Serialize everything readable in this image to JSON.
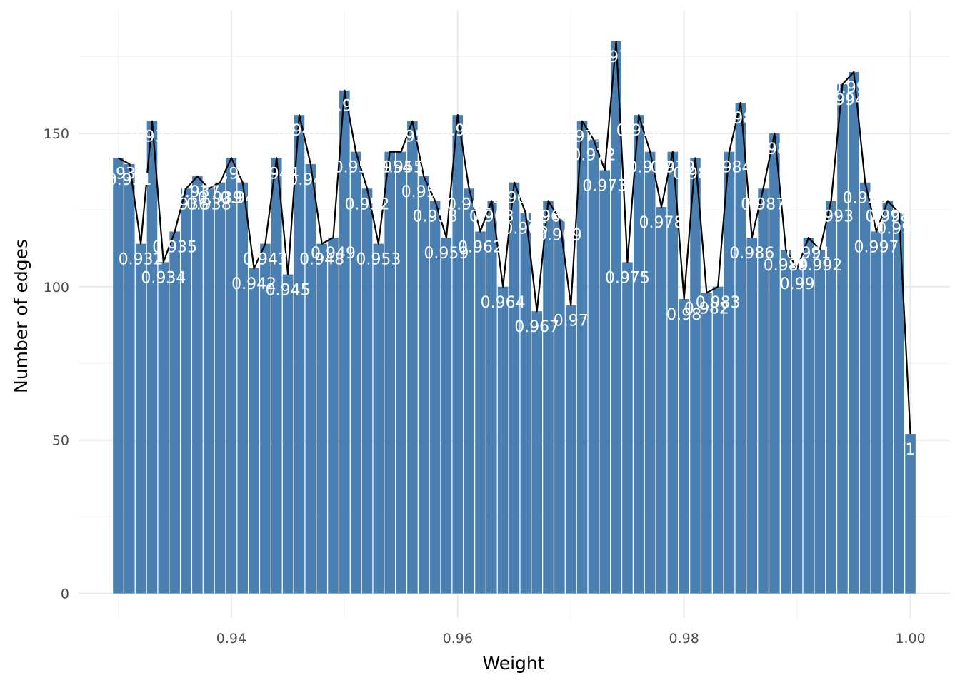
{
  "chart_data": {
    "type": "bar",
    "xlabel": "Weight",
    "ylabel": "Number of edges",
    "xlim": [
      0.9265,
      1.0035
    ],
    "ylim": [
      -8,
      190
    ],
    "grid": true,
    "legend": "none",
    "x_ticks": [
      {
        "value": 0.94,
        "label": "0.94"
      },
      {
        "value": 0.96,
        "label": "0.96"
      },
      {
        "value": 0.98,
        "label": "0.98"
      },
      {
        "value": 1.0,
        "label": "1.00"
      }
    ],
    "y_ticks": [
      {
        "value": 0,
        "label": "0"
      },
      {
        "value": 50,
        "label": "50"
      },
      {
        "value": 100,
        "label": "100"
      },
      {
        "value": 150,
        "label": "150"
      }
    ],
    "x": [
      0.93,
      0.931,
      0.932,
      0.933,
      0.934,
      0.935,
      0.936,
      0.937,
      0.938,
      0.939,
      0.94,
      0.941,
      0.942,
      0.943,
      0.944,
      0.945,
      0.946,
      0.947,
      0.948,
      0.949,
      0.95,
      0.951,
      0.952,
      0.953,
      0.954,
      0.955,
      0.956,
      0.957,
      0.958,
      0.959,
      0.96,
      0.961,
      0.962,
      0.963,
      0.964,
      0.965,
      0.966,
      0.967,
      0.968,
      0.969,
      0.97,
      0.971,
      0.972,
      0.973,
      0.974,
      0.975,
      0.976,
      0.977,
      0.978,
      0.979,
      0.98,
      0.981,
      0.982,
      0.983,
      0.984,
      0.985,
      0.986,
      0.987,
      0.988,
      0.989,
      0.99,
      0.991,
      0.992,
      0.993,
      0.994,
      0.995,
      0.996,
      0.997,
      0.998,
      0.999,
      1.0
    ],
    "values": [
      142,
      140,
      114,
      154,
      108,
      118,
      132,
      136,
      132,
      134,
      142,
      134,
      106,
      114,
      142,
      104,
      156,
      140,
      114,
      116,
      164,
      144,
      132,
      114,
      144,
      144,
      154,
      136,
      128,
      116,
      156,
      132,
      118,
      128,
      100,
      134,
      124,
      92,
      128,
      122,
      94,
      154,
      148,
      138,
      180,
      108,
      156,
      144,
      126,
      144,
      96,
      142,
      98,
      100,
      144,
      160,
      116,
      132,
      150,
      112,
      106,
      116,
      112,
      128,
      166,
      170,
      134,
      118,
      128,
      124,
      52
    ],
    "bar_labels": [
      "0.93",
      "0.931",
      "0.932",
      "0.933",
      "0.934",
      "0.935",
      "0.936",
      "0.937",
      "0.938",
      "0.939",
      "0.94",
      "0.941",
      "0.942",
      "0.943",
      "0.944",
      "0.945",
      "0.946",
      "0.947",
      "0.948",
      "0.949",
      "0.95",
      "0.951",
      "0.952",
      "0.953",
      "0.954",
      "0.955",
      "0.956",
      "0.957",
      "0.958",
      "0.959",
      "0.96",
      "0.961",
      "0.962",
      "0.963",
      "0.964",
      "0.965",
      "0.966",
      "0.967",
      "0.968",
      "0.969",
      "0.97",
      "0.971",
      "0.972",
      "0.973",
      "0.974",
      "0.975",
      "0.976",
      "0.977",
      "0.978",
      "0.979",
      "0.98",
      "0.981",
      "0.982",
      "0.983",
      "0.984",
      "0.985",
      "0.986",
      "0.987",
      "0.988",
      "0.989",
      "0.99",
      "0.991",
      "0.992",
      "0.993",
      "0.994",
      "0.995",
      "0.996",
      "0.997",
      "0.998",
      "0.999",
      "1"
    ],
    "colors": {
      "bar": "#4a7fb2",
      "line": "#000000",
      "label": "#ffffff",
      "grid_major": "#ebebeb",
      "grid_minor": "#f3f3f3",
      "tick_text": "#4d4d4d"
    }
  }
}
